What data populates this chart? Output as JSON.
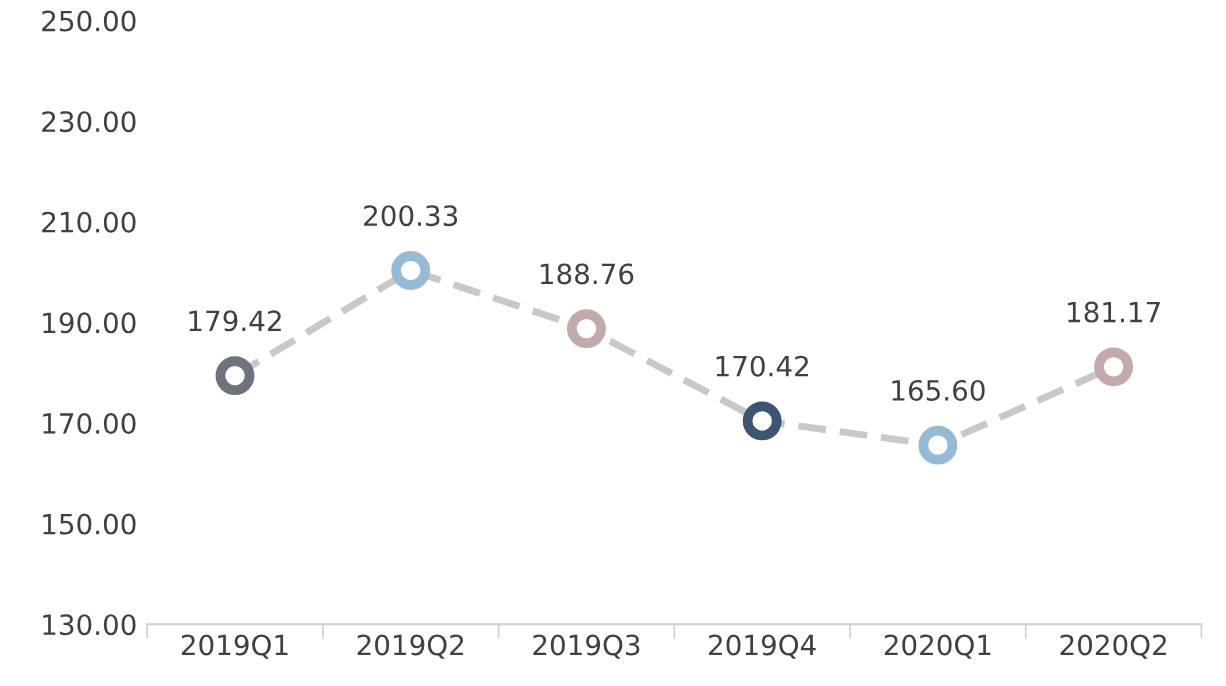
{
  "chart_data": {
    "type": "line",
    "categories": [
      "2019Q1",
      "2019Q2",
      "2019Q3",
      "2019Q4",
      "2020Q1",
      "2020Q2"
    ],
    "series": [
      {
        "color": "#c8c8c8",
        "colors": [
          "#6e737f",
          "#94bad6",
          "#c2aaaa",
          "#3d5573",
          "#94bad6",
          "#c2aaaa"
        ],
        "values": [
          179.42,
          200.33,
          188.76,
          170.42,
          165.6,
          181.17
        ],
        "value_labels": [
          "179.42",
          "200.33",
          "188.76",
          "170.42",
          "165.60",
          "181.17"
        ]
      }
    ],
    "marker": "circle",
    "line_style": "dashed",
    "grid": false,
    "legend": false,
    "ylim": [
      130,
      250
    ],
    "yticks": [
      {
        "value": 130,
        "label": "130.00"
      },
      {
        "value": 150,
        "label": "150.00"
      },
      {
        "value": 170,
        "label": "170.00"
      },
      {
        "value": 190,
        "label": "190.00"
      },
      {
        "value": 210,
        "label": "210.00"
      },
      {
        "value": 230,
        "label": "230.00"
      },
      {
        "value": 250,
        "label": "250.00"
      }
    ]
  }
}
